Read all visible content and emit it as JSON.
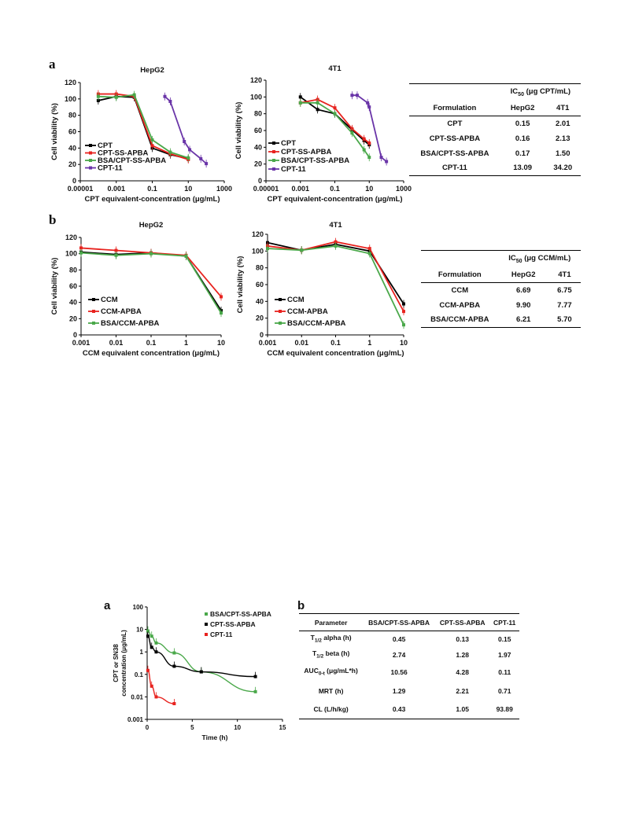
{
  "panels": {
    "a": "a",
    "b": "b",
    "pk_a": "a",
    "pk_b": "b"
  },
  "chart_data": [
    {
      "id": "a_hepg2",
      "type": "line",
      "title": "HepG2",
      "xlabel": "CPT equivalent-concentration (μg/mL)",
      "ylabel": "Cell viability (%)",
      "xscale": "log",
      "xlim": [
        1e-05,
        1000
      ],
      "ylim": [
        0,
        120
      ],
      "xticks": [
        "0.00001",
        "0.001",
        "0.1",
        "10",
        "1000"
      ],
      "yticks": [
        "0",
        "20",
        "40",
        "60",
        "80",
        "100",
        "120"
      ],
      "legend": [
        "CPT",
        "CPT-SS-APBA",
        "BSA/CPT-SS-APBA",
        "CPT-11"
      ],
      "legend_position": "bottom-left",
      "series": [
        {
          "name": "CPT",
          "color": "#000000",
          "x": [
            0.0001,
            0.001,
            0.01,
            0.1,
            1,
            10
          ],
          "y": [
            98,
            103,
            102,
            40,
            32,
            27
          ]
        },
        {
          "name": "CPT-SS-APBA",
          "color": "#e8231f",
          "x": [
            0.0001,
            0.001,
            0.01,
            0.1,
            1,
            10
          ],
          "y": [
            106,
            106,
            103,
            43,
            33,
            26
          ]
        },
        {
          "name": "BSA/CPT-SS-APBA",
          "color": "#4aa84a",
          "x": [
            0.0001,
            0.001,
            0.01,
            0.1,
            1,
            10
          ],
          "y": [
            103,
            102,
            105,
            50,
            35,
            28
          ]
        },
        {
          "name": "CPT-11",
          "color": "#6a35a8",
          "x": [
            0.5,
            1,
            6,
            12,
            50,
            100
          ],
          "y": [
            103,
            97,
            48,
            38,
            27,
            21
          ]
        }
      ]
    },
    {
      "id": "a_4t1",
      "type": "line",
      "title": "4T1",
      "xlabel": "CPT equivalent-concentration (μg/mL)",
      "ylabel": "Cell viability (%)",
      "xscale": "log",
      "xlim": [
        1e-05,
        1000
      ],
      "ylim": [
        0,
        120
      ],
      "xticks": [
        "0.00001",
        "0.001",
        "0.1",
        "10",
        "1000"
      ],
      "yticks": [
        "0",
        "20",
        "40",
        "60",
        "80",
        "100",
        "120"
      ],
      "legend": [
        "CPT",
        "CPT-SS-APBA",
        "BSA/CPT-SS-APBA",
        "CPT-11"
      ],
      "legend_position": "bottom-left",
      "series": [
        {
          "name": "CPT",
          "color": "#000000",
          "x": [
            0.001,
            0.01,
            0.1,
            1,
            5,
            10
          ],
          "y": [
            100,
            85,
            80,
            61,
            48,
            43
          ]
        },
        {
          "name": "CPT-SS-APBA",
          "color": "#e8231f",
          "x": [
            0.001,
            0.01,
            0.1,
            1,
            5,
            10
          ],
          "y": [
            93,
            97,
            87,
            62,
            50,
            45
          ]
        },
        {
          "name": "BSA/CPT-SS-APBA",
          "color": "#4aa84a",
          "x": [
            0.001,
            0.01,
            0.1,
            1,
            5,
            10
          ],
          "y": [
            93,
            93,
            80,
            57,
            37,
            28
          ]
        },
        {
          "name": "CPT-11",
          "color": "#6a35a8",
          "x": [
            1,
            2,
            8,
            10,
            50,
            100
          ],
          "y": [
            102,
            102,
            93,
            88,
            28,
            23
          ]
        }
      ]
    },
    {
      "id": "b_hepg2",
      "type": "line",
      "title": "HepG2",
      "xlabel": "CCM equivalent concentration (μg/mL)",
      "ylabel": "Cell viability (%)",
      "xscale": "log",
      "xlim": [
        0.001,
        10
      ],
      "ylim": [
        0,
        120
      ],
      "xticks": [
        "0.001",
        "0.01",
        "0.1",
        "1",
        "10"
      ],
      "yticks": [
        "0",
        "20",
        "40",
        "60",
        "80",
        "100",
        "120"
      ],
      "legend": [
        "CCM",
        "CCM-APBA",
        "BSA/CCM-APBA"
      ],
      "legend_position": "bottom-left",
      "series": [
        {
          "name": "CCM",
          "color": "#000000",
          "x": [
            0.001,
            0.01,
            0.1,
            1,
            10
          ],
          "y": [
            102,
            99,
            101,
            97,
            30
          ]
        },
        {
          "name": "CCM-APBA",
          "color": "#e8231f",
          "x": [
            0.001,
            0.01,
            0.1,
            1,
            10
          ],
          "y": [
            107,
            104,
            101,
            98,
            47
          ]
        },
        {
          "name": "BSA/CCM-APBA",
          "color": "#4aa84a",
          "x": [
            0.001,
            0.01,
            0.1,
            1,
            10
          ],
          "y": [
            101,
            98,
            100,
            97,
            27
          ]
        }
      ]
    },
    {
      "id": "b_4t1",
      "type": "line",
      "title": "4T1",
      "xlabel": "CCM equivalent concentration (μg/mL)",
      "ylabel": "Cell viability (%)",
      "xscale": "log",
      "xlim": [
        0.001,
        10
      ],
      "ylim": [
        0,
        120
      ],
      "xticks": [
        "0.001",
        "0.01",
        "0.1",
        "1",
        "10"
      ],
      "yticks": [
        "0",
        "20",
        "40",
        "60",
        "80",
        "100",
        "120"
      ],
      "legend": [
        "CCM",
        "CCM-APBA",
        "BSA/CCM-APBA"
      ],
      "legend_position": "bottom-left",
      "series": [
        {
          "name": "CCM",
          "color": "#000000",
          "x": [
            0.001,
            0.01,
            0.1,
            1,
            10
          ],
          "y": [
            110,
            101,
            108,
            100,
            37
          ]
        },
        {
          "name": "CCM-APBA",
          "color": "#e8231f",
          "x": [
            0.001,
            0.01,
            0.1,
            1,
            10
          ],
          "y": [
            106,
            101,
            111,
            103,
            28
          ]
        },
        {
          "name": "BSA/CCM-APBA",
          "color": "#4aa84a",
          "x": [
            0.001,
            0.01,
            0.1,
            1,
            10
          ],
          "y": [
            103,
            101,
            106,
            97,
            12
          ]
        }
      ]
    },
    {
      "id": "pk",
      "type": "scatter",
      "title": "",
      "xlabel": "Time (h)",
      "ylabel": "CPT or SN38 concentration (μg/mL)",
      "xscale": "linear",
      "yscale": "log",
      "xlim": [
        0,
        15
      ],
      "ylim": [
        0.001,
        100
      ],
      "xticks": [
        "0",
        "5",
        "10",
        "15"
      ],
      "yticks": [
        "0.001",
        "0.01",
        "0.1",
        "1",
        "10",
        "100"
      ],
      "legend": [
        "BSA/CPT-SS-APBA",
        "CPT-SS-APBA",
        "CPT-11"
      ],
      "legend_position": "top-right",
      "series": [
        {
          "name": "BSA/CPT-SS-APBA",
          "color": "#4aa84a",
          "x": [
            0.083,
            0.5,
            1,
            3,
            6,
            12
          ],
          "y": [
            8.5,
            5,
            2.5,
            0.9,
            0.13,
            0.017
          ]
        },
        {
          "name": "CPT-SS-APBA",
          "color": "#000000",
          "x": [
            0.083,
            0.5,
            1,
            3,
            6,
            12
          ],
          "y": [
            5,
            1.6,
            1.0,
            0.23,
            0.13,
            0.08
          ]
        },
        {
          "name": "CPT-11",
          "color": "#e8231f",
          "x": [
            0.083,
            0.5,
            1,
            3
          ],
          "y": [
            0.15,
            0.03,
            0.01,
            0.005
          ]
        }
      ]
    }
  ],
  "table_a": {
    "header": "IC",
    "header_sub": "50",
    "header_rest": " (μg CPT/mL)",
    "col_formulation": "Formulation",
    "col_hepg2": "HepG2",
    "col_4t1": "4T1",
    "rows": [
      {
        "f": "CPT",
        "h": "0.15",
        "t": "2.01"
      },
      {
        "f": "CPT-SS-APBA",
        "h": "0.16",
        "t": "2.13"
      },
      {
        "f": "BSA/CPT-SS-APBA",
        "h": "0.17",
        "t": "1.50"
      },
      {
        "f": "CPT-11",
        "h": "13.09",
        "t": "34.20"
      }
    ]
  },
  "table_b": {
    "header": "IC",
    "header_sub": "50",
    "header_rest": " (μg CCM/mL)",
    "col_formulation": "Formulation",
    "col_hepg2": "HepG2",
    "col_4t1": "4T1",
    "rows": [
      {
        "f": "CCM",
        "h": "6.69",
        "t": "6.75"
      },
      {
        "f": "CCM-APBA",
        "h": "9.90",
        "t": "7.77"
      },
      {
        "f": "BSA/CCM-APBA",
        "h": "6.21",
        "t": "5.70"
      }
    ]
  },
  "pk_table": {
    "headers": [
      "Parameter",
      "BSA/CPT-SS-APBA",
      "CPT-SS-APBA",
      "CPT-11"
    ],
    "rows": [
      {
        "p": "T",
        "sub": "1/2",
        "rest": " alpha (h)",
        "v": [
          "0.45",
          "0.13",
          "0.15"
        ]
      },
      {
        "p": "T",
        "sub": "1/2",
        "rest": " beta (h)",
        "v": [
          "2.74",
          "1.28",
          "1.97"
        ]
      },
      {
        "p": "AUC",
        "sub": "0-t",
        "rest": " (μg/mL*h)",
        "v": [
          "10.56",
          "4.28",
          "0.11"
        ]
      },
      {
        "p": "MRT (h)",
        "sub": "",
        "rest": "",
        "v": [
          "1.29",
          "2.21",
          "0.71"
        ]
      },
      {
        "p": "CL (L/h/kg)",
        "sub": "",
        "rest": "",
        "v": [
          "0.43",
          "1.05",
          "93.89"
        ]
      }
    ]
  }
}
